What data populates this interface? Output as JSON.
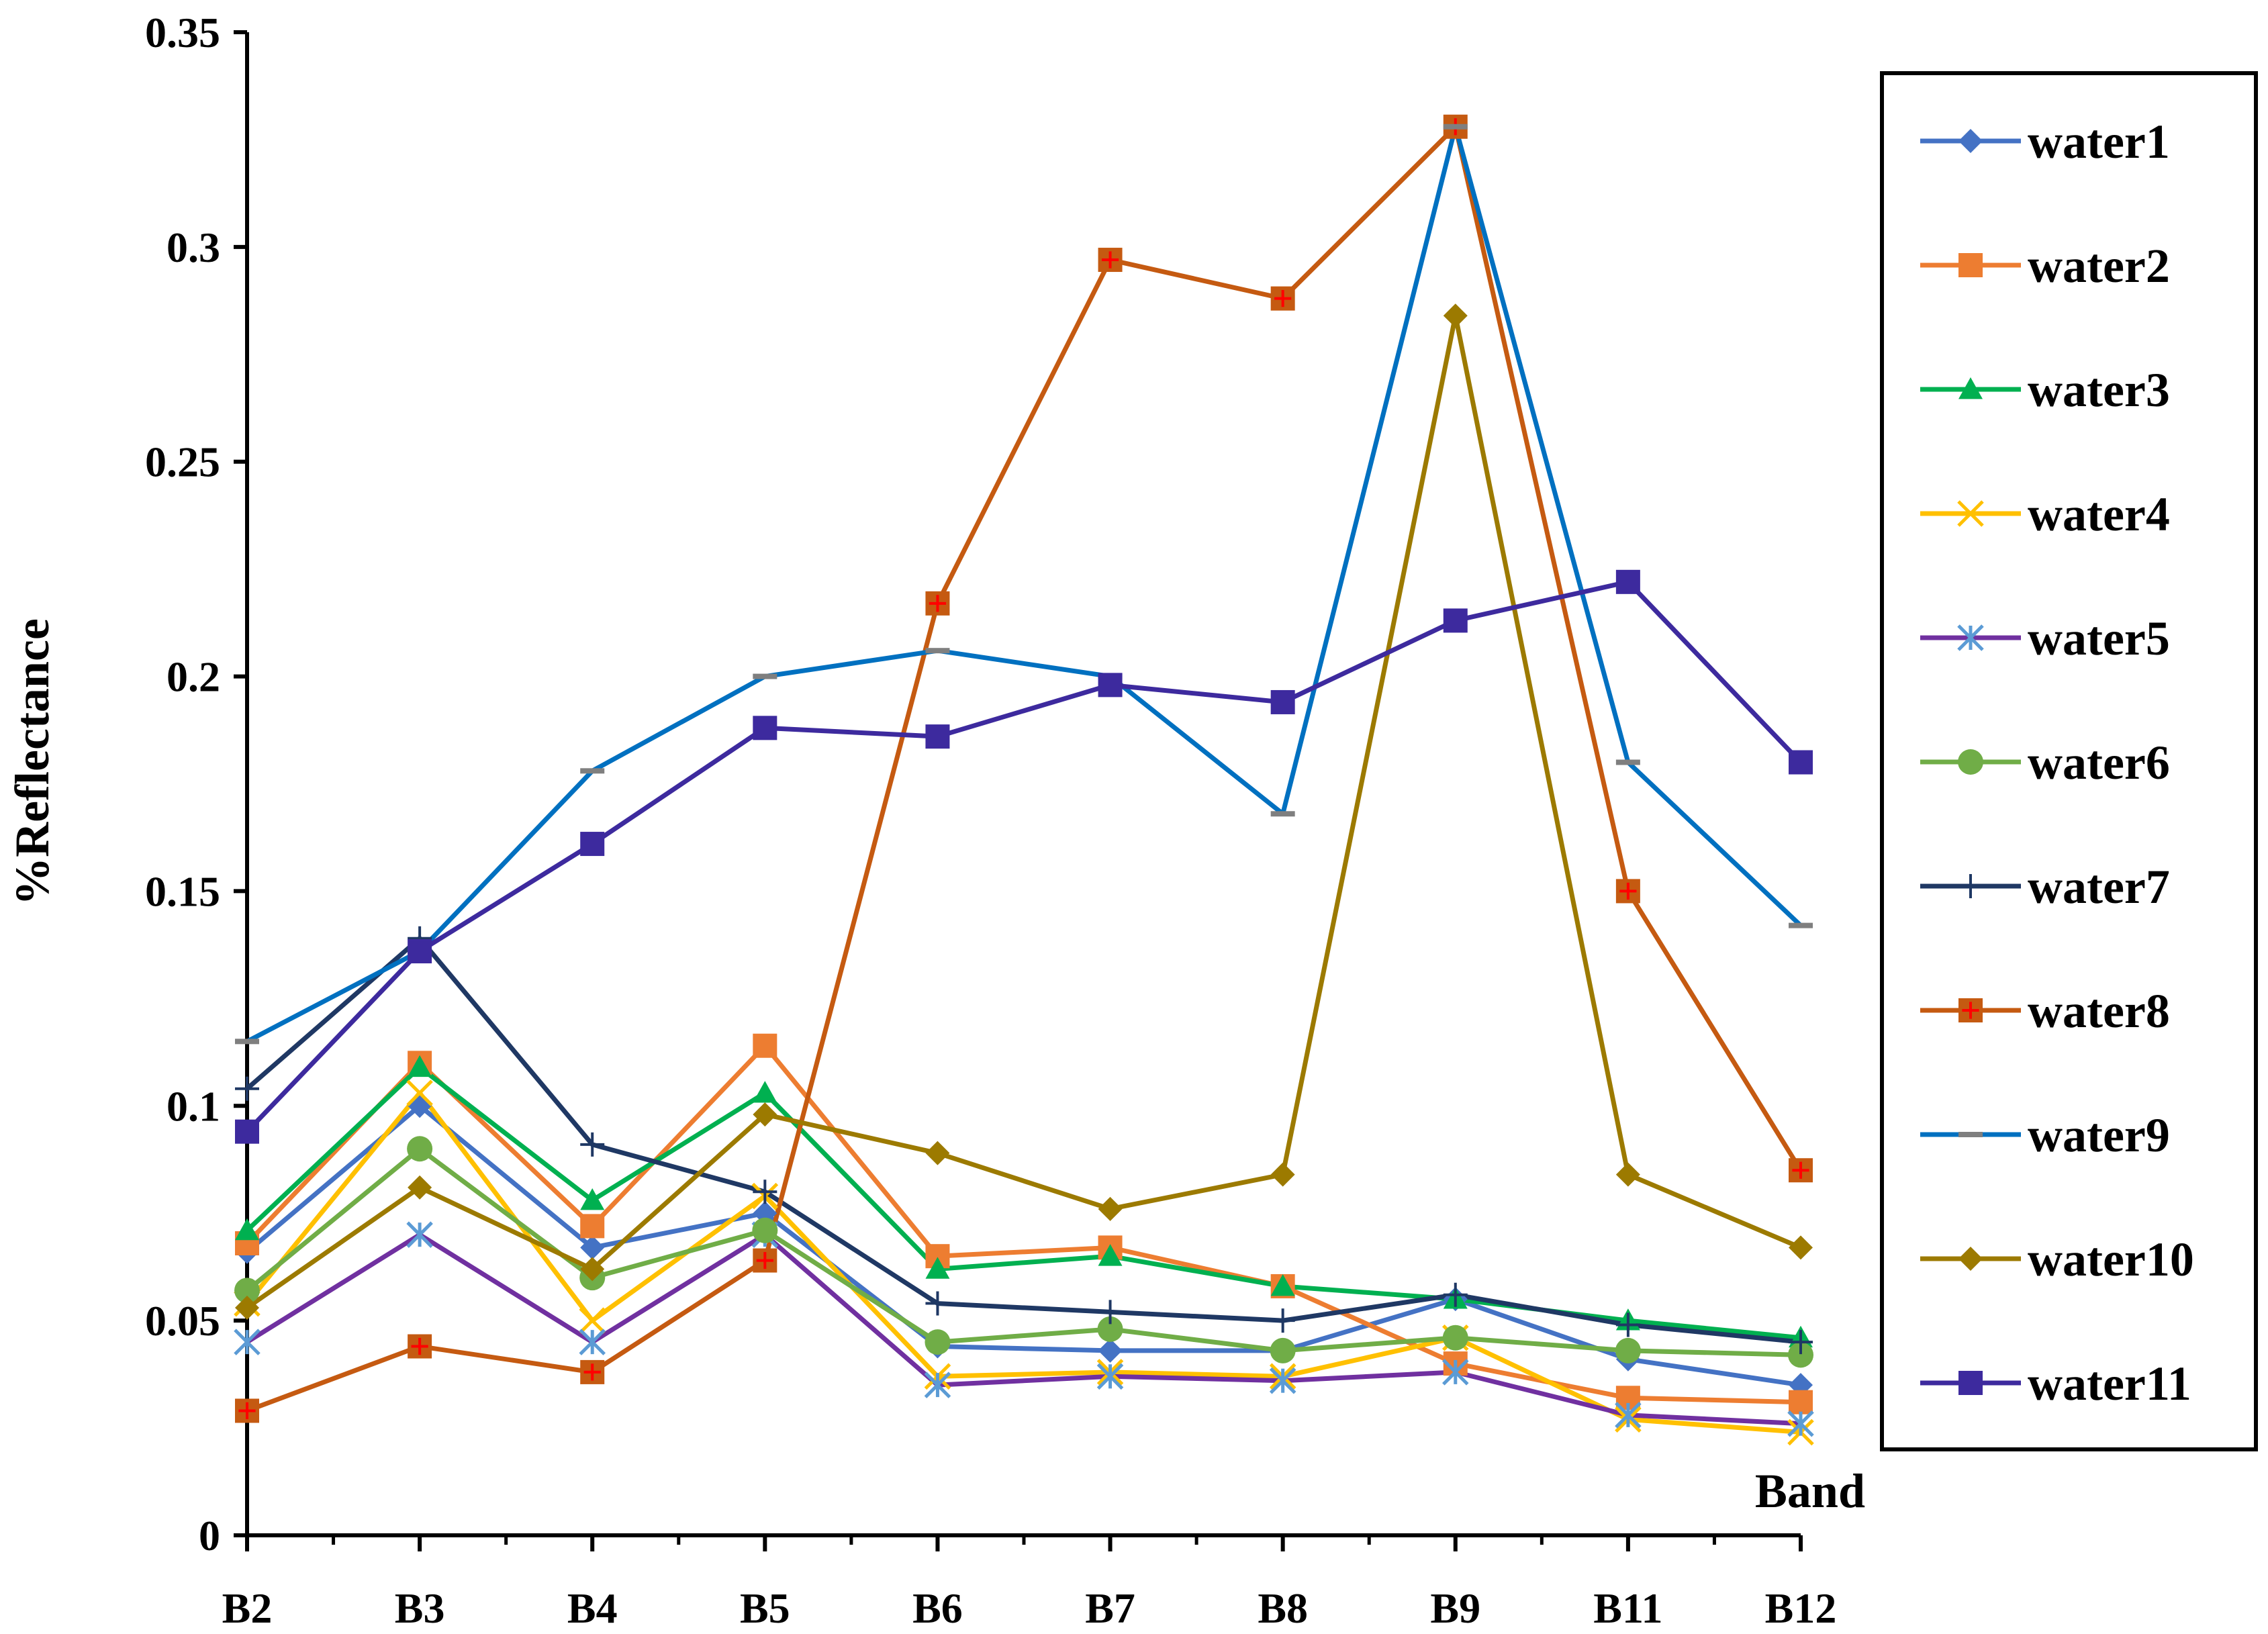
{
  "chart_data": {
    "type": "line",
    "title": "",
    "xlabel": "Band",
    "ylabel": "%Reflectance",
    "categories": [
      "B2",
      "B3",
      "B4",
      "B5",
      "B6",
      "B7",
      "B8",
      "B9",
      "B11",
      "B12"
    ],
    "ylim": [
      0,
      0.35
    ],
    "yticks": [
      0,
      0.05,
      0.1,
      0.15,
      0.2,
      0.25,
      0.3,
      0.35
    ],
    "ytick_labels": [
      "0",
      "0.05",
      "0.1",
      "0.15",
      "0.2",
      "0.25",
      "0.3",
      "0.35"
    ],
    "grid": false,
    "legend_position": "right",
    "series": [
      {
        "name": "water1",
        "color": "#4472C4",
        "marker": "diamond",
        "values": [
          0.066,
          0.1,
          0.067,
          0.075,
          0.044,
          0.043,
          0.043,
          0.055,
          0.041,
          0.035
        ]
      },
      {
        "name": "water2",
        "color": "#ED7D31",
        "marker": "square",
        "values": [
          0.068,
          0.11,
          0.072,
          0.114,
          0.065,
          0.067,
          0.058,
          0.04,
          0.032,
          0.031
        ]
      },
      {
        "name": "water3",
        "color": "#00B050",
        "marker": "triangle",
        "values": [
          0.071,
          0.109,
          0.078,
          0.103,
          0.062,
          0.065,
          0.058,
          0.055,
          0.05,
          0.046
        ]
      },
      {
        "name": "water4",
        "color": "#FFC000",
        "marker": "x",
        "values": [
          0.054,
          0.103,
          0.05,
          0.079,
          0.037,
          0.038,
          0.037,
          0.046,
          0.027,
          0.024
        ]
      },
      {
        "name": "water5",
        "color": "#7030A0",
        "marker": "star",
        "values": [
          0.045,
          0.07,
          0.045,
          0.07,
          0.035,
          0.037,
          0.036,
          0.038,
          0.028,
          0.026
        ]
      },
      {
        "name": "water6",
        "color": "#70AD47",
        "marker": "circle",
        "values": [
          0.057,
          0.09,
          0.06,
          0.071,
          0.045,
          0.048,
          0.043,
          0.046,
          0.043,
          0.042
        ]
      },
      {
        "name": "water7",
        "color": "#1F3864",
        "marker": "plus",
        "values": [
          0.104,
          0.139,
          0.091,
          0.08,
          0.054,
          0.052,
          0.05,
          0.056,
          0.049,
          0.045
        ]
      },
      {
        "name": "water8",
        "color": "#C55A11",
        "marker": "square-plus",
        "values": [
          0.029,
          0.044,
          0.038,
          0.064,
          0.217,
          0.297,
          0.288,
          0.328,
          0.15,
          0.085
        ]
      },
      {
        "name": "water9",
        "color": "#0070C0",
        "marker": "dash",
        "values": [
          0.115,
          0.136,
          0.178,
          0.2,
          0.206,
          0.2,
          0.168,
          0.328,
          0.18,
          0.142
        ]
      },
      {
        "name": "water10",
        "color": "#9C7A00",
        "marker": "diamond",
        "values": [
          0.053,
          0.081,
          0.062,
          0.098,
          0.089,
          0.076,
          0.084,
          0.284,
          0.084,
          0.067
        ]
      },
      {
        "name": "water11",
        "color": "#3D2A9E",
        "marker": "square",
        "values": [
          0.094,
          0.136,
          0.161,
          0.188,
          0.186,
          0.198,
          0.194,
          0.213,
          0.222,
          0.18
        ]
      }
    ]
  }
}
